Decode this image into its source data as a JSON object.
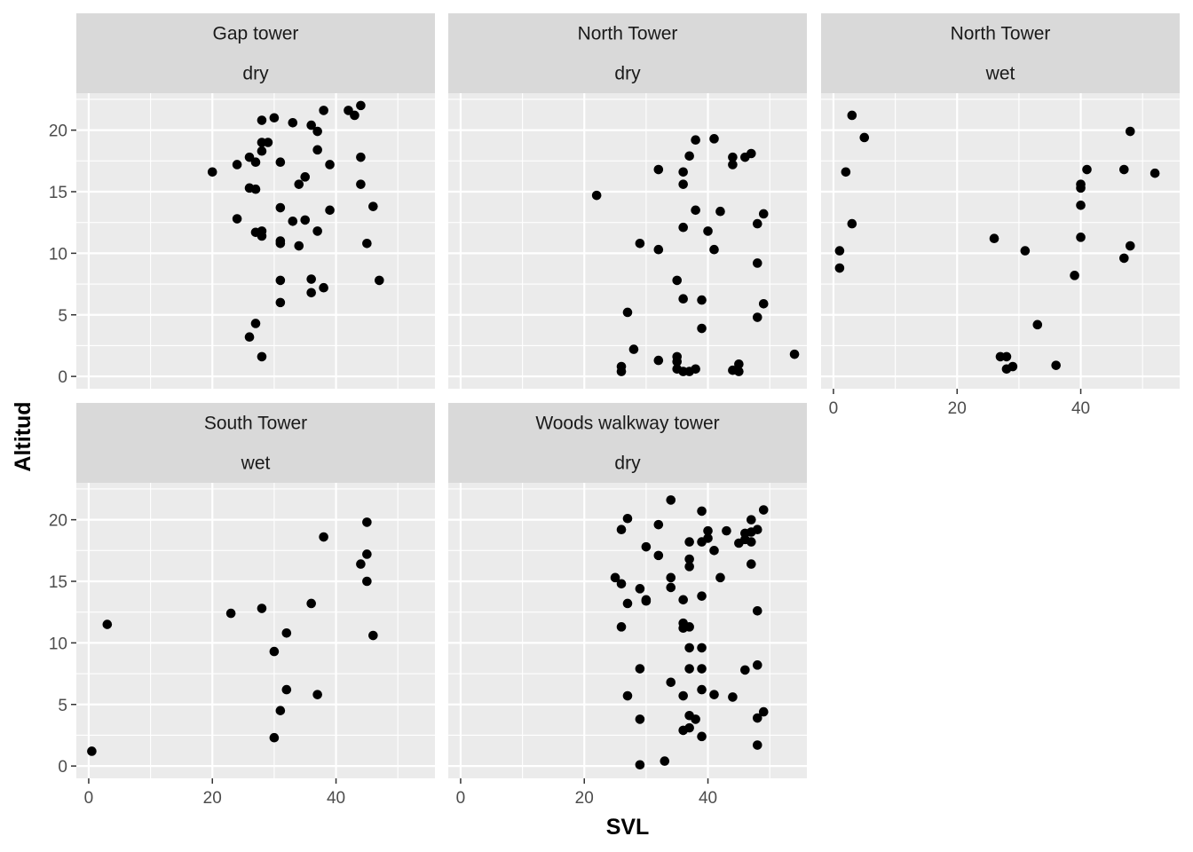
{
  "chart_data": {
    "type": "scatter",
    "xlabel": "SVL",
    "ylabel": "Altitud",
    "xlim": [
      -2,
      56
    ],
    "ylim": [
      -1,
      23
    ],
    "x_ticks": [
      0,
      20,
      40
    ],
    "y_ticks": [
      0,
      5,
      10,
      15,
      20
    ],
    "grid": true,
    "point_color": "#000000",
    "panel_background": "#ebebeb",
    "strip_background": "#d9d9d9",
    "panels": [
      {
        "tower": "Gap tower",
        "condition": "dry",
        "points": [
          [
            20,
            16.6
          ],
          [
            24,
            17.2
          ],
          [
            24,
            12.8
          ],
          [
            26,
            17.8
          ],
          [
            26,
            15.3
          ],
          [
            26,
            3.2
          ],
          [
            27,
            17.4
          ],
          [
            27,
            15.2
          ],
          [
            27,
            11.7
          ],
          [
            27,
            4.3
          ],
          [
            28,
            20.8
          ],
          [
            28,
            19.0
          ],
          [
            28,
            18.3
          ],
          [
            28,
            11.8
          ],
          [
            28,
            11.4
          ],
          [
            28,
            1.6
          ],
          [
            29,
            19.0
          ],
          [
            30,
            21.0
          ],
          [
            31,
            17.4
          ],
          [
            31,
            13.7
          ],
          [
            31,
            11.0
          ],
          [
            31,
            10.8
          ],
          [
            31,
            7.8
          ],
          [
            31,
            6.0
          ],
          [
            33,
            20.6
          ],
          [
            33,
            12.6
          ],
          [
            34,
            15.6
          ],
          [
            34,
            10.6
          ],
          [
            35,
            16.2
          ],
          [
            35,
            12.7
          ],
          [
            36,
            20.4
          ],
          [
            36,
            7.9
          ],
          [
            36,
            6.8
          ],
          [
            37,
            19.9
          ],
          [
            37,
            18.4
          ],
          [
            37,
            11.8
          ],
          [
            38,
            21.6
          ],
          [
            38,
            7.2
          ],
          [
            39,
            17.2
          ],
          [
            39,
            13.5
          ],
          [
            42,
            21.6
          ],
          [
            43,
            21.2
          ],
          [
            44,
            22.0
          ],
          [
            44,
            17.8
          ],
          [
            44,
            15.6
          ],
          [
            45,
            10.8
          ],
          [
            46,
            13.8
          ],
          [
            47,
            7.8
          ]
        ]
      },
      {
        "tower": "North Tower",
        "condition": "dry",
        "points": [
          [
            22,
            14.7
          ],
          [
            26,
            0.8
          ],
          [
            26,
            0.4
          ],
          [
            27,
            5.2
          ],
          [
            28,
            2.2
          ],
          [
            29,
            10.8
          ],
          [
            32,
            16.8
          ],
          [
            32,
            10.3
          ],
          [
            32,
            1.3
          ],
          [
            35,
            7.8
          ],
          [
            35,
            1.6
          ],
          [
            35,
            1.2
          ],
          [
            35,
            0.6
          ],
          [
            36,
            16.6
          ],
          [
            36,
            15.6
          ],
          [
            36,
            12.1
          ],
          [
            36,
            6.3
          ],
          [
            36,
            0.4
          ],
          [
            37,
            17.9
          ],
          [
            37,
            0.4
          ],
          [
            38,
            19.2
          ],
          [
            38,
            13.5
          ],
          [
            38,
            0.6
          ],
          [
            39,
            6.2
          ],
          [
            39,
            3.9
          ],
          [
            40,
            11.8
          ],
          [
            41,
            19.3
          ],
          [
            41,
            10.3
          ],
          [
            42,
            13.4
          ],
          [
            44,
            0.5
          ],
          [
            44,
            17.8
          ],
          [
            44,
            17.2
          ],
          [
            45,
            1.0
          ],
          [
            45,
            0.4
          ],
          [
            46,
            17.8
          ],
          [
            47,
            18.1
          ],
          [
            48,
            12.4
          ],
          [
            48,
            9.2
          ],
          [
            48,
            4.8
          ],
          [
            49,
            13.2
          ],
          [
            49,
            5.9
          ],
          [
            54,
            1.8
          ]
        ]
      },
      {
        "tower": "North Tower",
        "condition": "wet",
        "points": [
          [
            1,
            10.2
          ],
          [
            1,
            8.8
          ],
          [
            2,
            16.6
          ],
          [
            3,
            21.2
          ],
          [
            3,
            12.4
          ],
          [
            5,
            19.4
          ],
          [
            26,
            11.2
          ],
          [
            27,
            1.6
          ],
          [
            28,
            1.6
          ],
          [
            28,
            0.6
          ],
          [
            29,
            0.8
          ],
          [
            31,
            10.2
          ],
          [
            33,
            4.2
          ],
          [
            36,
            0.9
          ],
          [
            39,
            8.2
          ],
          [
            40,
            15.6
          ],
          [
            40,
            15.3
          ],
          [
            40,
            13.9
          ],
          [
            40,
            11.3
          ],
          [
            41,
            16.8
          ],
          [
            47,
            16.8
          ],
          [
            47,
            9.6
          ],
          [
            48,
            19.9
          ],
          [
            48,
            10.6
          ],
          [
            52,
            16.5
          ]
        ]
      },
      {
        "tower": "South Tower",
        "condition": "wet",
        "points": [
          [
            0.5,
            1.2
          ],
          [
            3,
            11.5
          ],
          [
            23,
            12.4
          ],
          [
            28,
            12.8
          ],
          [
            30,
            9.3
          ],
          [
            30,
            2.3
          ],
          [
            31,
            4.5
          ],
          [
            32,
            10.8
          ],
          [
            32,
            6.2
          ],
          [
            36,
            13.2
          ],
          [
            37,
            5.8
          ],
          [
            38,
            18.6
          ],
          [
            44,
            16.4
          ],
          [
            45,
            19.8
          ],
          [
            45,
            17.2
          ],
          [
            45,
            15.0
          ],
          [
            46,
            10.6
          ]
        ]
      },
      {
        "tower": "Woods walkway tower",
        "condition": "dry",
        "points": [
          [
            25,
            15.3
          ],
          [
            26,
            19.2
          ],
          [
            26,
            14.8
          ],
          [
            26,
            11.3
          ],
          [
            27,
            20.1
          ],
          [
            27,
            13.2
          ],
          [
            27,
            5.7
          ],
          [
            29,
            14.4
          ],
          [
            29,
            7.9
          ],
          [
            29,
            3.8
          ],
          [
            29,
            0.1
          ],
          [
            30,
            17.8
          ],
          [
            30,
            13.5
          ],
          [
            30,
            13.4
          ],
          [
            32,
            19.6
          ],
          [
            32,
            17.1
          ],
          [
            33,
            0.4
          ],
          [
            34,
            21.6
          ],
          [
            34,
            15.3
          ],
          [
            34,
            14.5
          ],
          [
            34,
            6.8
          ],
          [
            36,
            13.5
          ],
          [
            36,
            11.6
          ],
          [
            36,
            11.2
          ],
          [
            36,
            5.7
          ],
          [
            36,
            2.9
          ],
          [
            37,
            18.2
          ],
          [
            37,
            16.8
          ],
          [
            37,
            16.2
          ],
          [
            37,
            11.3
          ],
          [
            37,
            9.6
          ],
          [
            37,
            7.9
          ],
          [
            37,
            4.1
          ],
          [
            37,
            3.1
          ],
          [
            38,
            3.8
          ],
          [
            39,
            20.7
          ],
          [
            39,
            18.2
          ],
          [
            39,
            13.8
          ],
          [
            39,
            9.6
          ],
          [
            39,
            7.9
          ],
          [
            39,
            6.2
          ],
          [
            39,
            2.4
          ],
          [
            40,
            19.1
          ],
          [
            40,
            18.5
          ],
          [
            41,
            17.5
          ],
          [
            41,
            5.8
          ],
          [
            42,
            15.3
          ],
          [
            43,
            19.1
          ],
          [
            44,
            5.6
          ],
          [
            45,
            18.1
          ],
          [
            46,
            18.9
          ],
          [
            46,
            18.4
          ],
          [
            46,
            7.8
          ],
          [
            47,
            20.0
          ],
          [
            47,
            19.0
          ],
          [
            47,
            18.2
          ],
          [
            47,
            16.4
          ],
          [
            48,
            19.2
          ],
          [
            48,
            12.6
          ],
          [
            48,
            8.2
          ],
          [
            48,
            3.9
          ],
          [
            48,
            1.7
          ],
          [
            49,
            20.8
          ],
          [
            49,
            4.4
          ]
        ]
      }
    ]
  }
}
